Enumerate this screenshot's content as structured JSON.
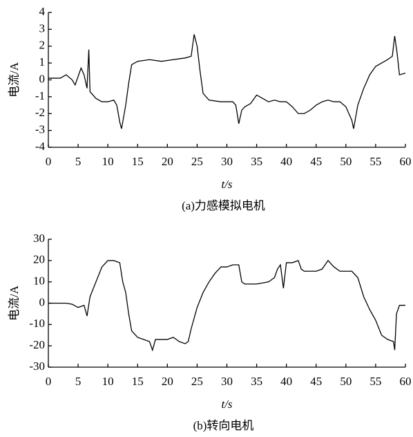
{
  "chart_data": [
    {
      "type": "line",
      "caption": "(a)力感模拟电机",
      "ylabel": "电流/A",
      "xlabel": "t/s",
      "xlim": [
        0,
        60
      ],
      "xticks": [
        0,
        5,
        10,
        15,
        20,
        25,
        30,
        35,
        40,
        45,
        50,
        55,
        60
      ],
      "ylim": [
        -4,
        4
      ],
      "yticks": [
        -4,
        -3,
        -2,
        -1,
        0,
        1,
        2,
        3,
        4
      ],
      "series": [
        {
          "color": "#000000",
          "x": [
            0,
            1,
            2,
            3,
            4,
            4.5,
            5,
            5.5,
            6,
            6.5,
            6.8,
            7,
            8,
            9,
            10,
            11,
            11.5,
            12,
            12.3,
            13,
            13.5,
            14,
            15,
            17,
            19,
            21,
            23,
            24,
            24.5,
            25,
            25.5,
            26,
            27,
            29,
            31,
            31.5,
            32,
            32.5,
            33,
            34,
            35,
            36,
            37,
            38,
            39,
            40,
            41,
            42,
            43,
            44,
            45,
            46,
            47,
            48,
            49,
            50,
            51,
            51.3,
            52,
            53,
            54,
            55,
            56,
            57,
            57.8,
            58.2,
            58.6,
            59,
            60
          ],
          "values": [
            0.1,
            0.1,
            0.1,
            0.3,
            0,
            -0.3,
            0.2,
            0.7,
            0.3,
            -0.5,
            1.8,
            -0.7,
            -1.1,
            -1.3,
            -1.3,
            -1.2,
            -1.5,
            -2.5,
            -2.9,
            -1.5,
            -0.2,
            0.9,
            1.1,
            1.2,
            1.1,
            1.2,
            1.3,
            1.4,
            2.7,
            2.0,
            0.5,
            -0.8,
            -1.2,
            -1.3,
            -1.3,
            -1.5,
            -2.6,
            -1.8,
            -1.6,
            -1.4,
            -0.9,
            -1.1,
            -1.3,
            -1.2,
            -1.3,
            -1.3,
            -1.6,
            -2.0,
            -2.0,
            -1.8,
            -1.5,
            -1.3,
            -1.2,
            -1.3,
            -1.3,
            -1.6,
            -2.4,
            -2.9,
            -1.5,
            -0.5,
            0.3,
            0.8,
            1.0,
            1.2,
            1.4,
            2.6,
            1.6,
            0.3,
            0.4
          ]
        }
      ]
    },
    {
      "type": "line",
      "caption": "(b)转向电机",
      "ylabel": "电流/A",
      "xlabel": "t/s",
      "xlim": [
        0,
        60
      ],
      "xticks": [
        0,
        5,
        10,
        15,
        20,
        25,
        30,
        35,
        40,
        45,
        50,
        55,
        60
      ],
      "ylim": [
        -30,
        30
      ],
      "yticks": [
        -30,
        -20,
        -10,
        0,
        10,
        20,
        30
      ],
      "series": [
        {
          "color": "#000000",
          "x": [
            0,
            3,
            4,
            5,
            6,
            6.5,
            7,
            8,
            9,
            10,
            11,
            12,
            12.5,
            13,
            13.5,
            14,
            15,
            16,
            17,
            17.5,
            18,
            20,
            21,
            22,
            23,
            23.5,
            24,
            25,
            26,
            27,
            28,
            29,
            30,
            31,
            32,
            32.5,
            33,
            35,
            37,
            38,
            38.5,
            39,
            39.5,
            40,
            41,
            42,
            42.5,
            43,
            45,
            46,
            47,
            48,
            49,
            50,
            51,
            52,
            53,
            54,
            55,
            56,
            57,
            58,
            58.2,
            58.5,
            59,
            60
          ],
          "values": [
            0,
            0,
            -0.5,
            -2,
            -1,
            -6,
            3,
            10,
            17,
            20,
            20,
            19,
            10,
            5,
            -5,
            -13,
            -16,
            -17,
            -18,
            -22,
            -17,
            -17,
            -16,
            -18,
            -19,
            -18,
            -12,
            -2,
            5,
            10,
            14,
            17,
            17,
            18,
            18,
            10,
            9,
            9,
            10,
            12,
            16,
            18,
            7,
            19,
            19,
            20,
            16,
            15,
            15,
            16,
            20,
            17,
            15,
            15,
            15,
            12,
            3,
            -3,
            -8,
            -15,
            -17,
            -18,
            -22,
            -5,
            -1,
            -1
          ]
        }
      ]
    }
  ]
}
